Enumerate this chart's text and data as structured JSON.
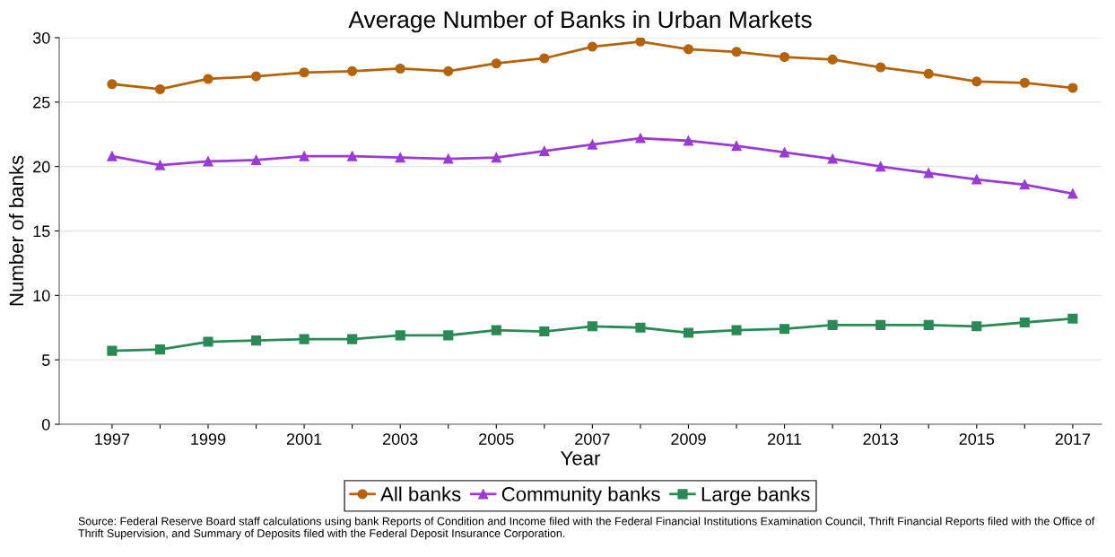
{
  "chart_data": {
    "type": "line",
    "title": "Average Number of Banks in Urban Markets",
    "xlabel": "Year",
    "ylabel": "Number of banks",
    "x": [
      1997,
      1998,
      1999,
      2000,
      2001,
      2002,
      2003,
      2004,
      2005,
      2006,
      2007,
      2008,
      2009,
      2010,
      2011,
      2012,
      2013,
      2014,
      2015,
      2016,
      2017
    ],
    "series": [
      {
        "name": "All banks",
        "color": "#b5630a",
        "marker": "circle",
        "values": [
          26.4,
          26.0,
          26.8,
          27.0,
          27.3,
          27.4,
          27.6,
          27.4,
          28.0,
          28.4,
          29.3,
          29.7,
          29.1,
          28.9,
          28.5,
          28.3,
          27.7,
          27.2,
          26.6,
          26.5,
          26.1
        ]
      },
      {
        "name": "Community banks",
        "color": "#9b3ad6",
        "marker": "triangle",
        "values": [
          20.8,
          20.1,
          20.4,
          20.5,
          20.8,
          20.8,
          20.7,
          20.6,
          20.7,
          21.2,
          21.7,
          22.2,
          22.0,
          21.6,
          21.1,
          20.6,
          20.0,
          19.5,
          19.0,
          18.6,
          17.9
        ]
      },
      {
        "name": "Large banks",
        "color": "#2a8a55",
        "marker": "square",
        "values": [
          5.7,
          5.8,
          6.4,
          6.5,
          6.6,
          6.6,
          6.9,
          6.9,
          7.3,
          7.2,
          7.6,
          7.5,
          7.1,
          7.3,
          7.4,
          7.7,
          7.7,
          7.7,
          7.6,
          7.9,
          8.2
        ]
      }
    ],
    "xlim": [
      1995.9,
      2017.6
    ],
    "xticks": [
      1997,
      {
        "value": 1998,
        "label": null
      },
      1999,
      {
        "value": 2000,
        "label": null
      },
      2001,
      {
        "value": 2002,
        "label": null
      },
      2003,
      {
        "value": 2004,
        "label": null
      },
      2005,
      {
        "value": 2006,
        "label": null
      },
      2007,
      {
        "value": 2008,
        "label": null
      },
      2009,
      {
        "value": 2010,
        "label": null
      },
      2011,
      {
        "value": 2012,
        "label": null
      },
      2013,
      {
        "value": 2014,
        "label": null
      },
      2015,
      {
        "value": 2016,
        "label": null
      },
      2017
    ],
    "ylim": [
      0,
      30
    ],
    "yticks": [
      0,
      5,
      10,
      15,
      20,
      25,
      30
    ],
    "grid": "y",
    "legend": "bottom",
    "line_style": "solid",
    "annotations": [
      "Source: Federal Reserve Board staff calculations using bank Reports of Condition and Income filed with the Federal Financial Institutions Examination Council, Thrift Financial Reports filed with the Office of Thrift Supervision, and Summary of Deposits filed with the Federal Deposit Insurance Corporation."
    ]
  }
}
